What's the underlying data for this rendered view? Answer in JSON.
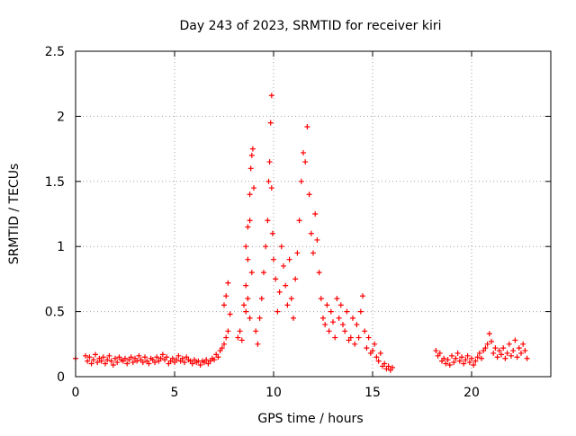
{
  "chart_data": {
    "type": "scatter",
    "title": "Day 243 of 2023, SRMTID for receiver kiri",
    "xlabel": "GPS time / hours",
    "ylabel": "SRMTID / TECUs",
    "xlim": [
      0,
      24
    ],
    "ylim": [
      0,
      2.5
    ],
    "xticks": [
      0,
      5,
      10,
      15,
      20
    ],
    "yticks": [
      0,
      0.5,
      1,
      1.5,
      2,
      2.5
    ],
    "xtick_labels": [
      "0",
      "5",
      "10",
      "15",
      "20"
    ],
    "ytick_labels": [
      "0",
      "0.5",
      "1",
      "1.5",
      "2",
      "2.5"
    ],
    "grid": true,
    "marker": "+",
    "series": [
      {
        "name": "SRMTID",
        "color": "#ff0000",
        "points": [
          [
            0.0,
            0.14
          ],
          [
            0.5,
            0.16
          ],
          [
            0.6,
            0.12
          ],
          [
            0.7,
            0.15
          ],
          [
            0.8,
            0.1
          ],
          [
            0.9,
            0.13
          ],
          [
            1.0,
            0.17
          ],
          [
            1.1,
            0.11
          ],
          [
            1.2,
            0.14
          ],
          [
            1.3,
            0.12
          ],
          [
            1.4,
            0.15
          ],
          [
            1.5,
            0.1
          ],
          [
            1.6,
            0.13
          ],
          [
            1.7,
            0.16
          ],
          [
            1.8,
            0.12
          ],
          [
            1.9,
            0.09
          ],
          [
            2.0,
            0.14
          ],
          [
            2.1,
            0.11
          ],
          [
            2.2,
            0.15
          ],
          [
            2.3,
            0.13
          ],
          [
            2.4,
            0.12
          ],
          [
            2.5,
            0.14
          ],
          [
            2.6,
            0.1
          ],
          [
            2.7,
            0.13
          ],
          [
            2.8,
            0.15
          ],
          [
            2.9,
            0.11
          ],
          [
            3.0,
            0.14
          ],
          [
            3.1,
            0.12
          ],
          [
            3.2,
            0.16
          ],
          [
            3.3,
            0.13
          ],
          [
            3.4,
            0.11
          ],
          [
            3.5,
            0.15
          ],
          [
            3.6,
            0.12
          ],
          [
            3.7,
            0.1
          ],
          [
            3.8,
            0.14
          ],
          [
            3.9,
            0.13
          ],
          [
            4.0,
            0.11
          ],
          [
            4.1,
            0.15
          ],
          [
            4.2,
            0.12
          ],
          [
            4.3,
            0.14
          ],
          [
            4.4,
            0.17
          ],
          [
            4.5,
            0.13
          ],
          [
            4.6,
            0.15
          ],
          [
            4.7,
            0.1
          ],
          [
            4.8,
            0.12
          ],
          [
            4.9,
            0.14
          ],
          [
            5.0,
            0.11
          ],
          [
            5.1,
            0.13
          ],
          [
            5.2,
            0.16
          ],
          [
            5.3,
            0.12
          ],
          [
            5.4,
            0.14
          ],
          [
            5.5,
            0.11
          ],
          [
            5.6,
            0.15
          ],
          [
            5.7,
            0.13
          ],
          [
            5.8,
            0.12
          ],
          [
            5.9,
            0.1
          ],
          [
            6.0,
            0.13
          ],
          [
            6.1,
            0.11
          ],
          [
            6.2,
            0.12
          ],
          [
            6.3,
            0.09
          ],
          [
            6.4,
            0.12
          ],
          [
            6.5,
            0.11
          ],
          [
            6.6,
            0.13
          ],
          [
            6.7,
            0.1
          ],
          [
            6.8,
            0.12
          ],
          [
            6.9,
            0.14
          ],
          [
            7.0,
            0.13
          ],
          [
            7.1,
            0.17
          ],
          [
            7.2,
            0.15
          ],
          [
            7.3,
            0.2
          ],
          [
            7.4,
            0.22
          ],
          [
            7.5,
            0.25
          ],
          [
            7.6,
            0.3
          ],
          [
            7.7,
            0.35
          ],
          [
            7.5,
            0.55
          ],
          [
            7.6,
            0.62
          ],
          [
            7.7,
            0.72
          ],
          [
            7.8,
            0.48
          ],
          [
            8.2,
            0.3
          ],
          [
            8.3,
            0.35
          ],
          [
            8.4,
            0.28
          ],
          [
            8.5,
            0.55
          ],
          [
            8.6,
            0.7
          ],
          [
            8.7,
            0.6
          ],
          [
            8.8,
            0.45
          ],
          [
            8.9,
            0.8
          ],
          [
            8.6,
            1.0
          ],
          [
            8.7,
            1.15
          ],
          [
            8.8,
            1.4
          ],
          [
            8.85,
            1.6
          ],
          [
            8.9,
            1.7
          ],
          [
            8.95,
            1.75
          ],
          [
            9.0,
            1.45
          ],
          [
            8.8,
            1.2
          ],
          [
            8.7,
            0.9
          ],
          [
            8.6,
            0.5
          ],
          [
            9.1,
            0.35
          ],
          [
            9.2,
            0.25
          ],
          [
            9.3,
            0.45
          ],
          [
            9.4,
            0.6
          ],
          [
            9.5,
            0.8
          ],
          [
            9.6,
            1.0
          ],
          [
            9.7,
            1.2
          ],
          [
            9.75,
            1.5
          ],
          [
            9.8,
            1.65
          ],
          [
            9.85,
            1.95
          ],
          [
            9.9,
            2.16
          ],
          [
            9.9,
            1.45
          ],
          [
            9.95,
            1.1
          ],
          [
            10.0,
            0.9
          ],
          [
            10.1,
            0.75
          ],
          [
            10.2,
            0.5
          ],
          [
            10.3,
            0.65
          ],
          [
            10.4,
            1.0
          ],
          [
            10.5,
            0.85
          ],
          [
            10.6,
            0.7
          ],
          [
            10.7,
            0.55
          ],
          [
            10.8,
            0.9
          ],
          [
            10.9,
            0.6
          ],
          [
            11.0,
            0.45
          ],
          [
            11.1,
            0.75
          ],
          [
            11.2,
            0.95
          ],
          [
            11.3,
            1.2
          ],
          [
            11.4,
            1.5
          ],
          [
            11.5,
            1.72
          ],
          [
            11.6,
            1.65
          ],
          [
            11.7,
            1.92
          ],
          [
            11.8,
            1.4
          ],
          [
            11.9,
            1.1
          ],
          [
            12.0,
            0.95
          ],
          [
            12.1,
            1.25
          ],
          [
            12.2,
            1.05
          ],
          [
            12.3,
            0.8
          ],
          [
            12.4,
            0.6
          ],
          [
            12.5,
            0.45
          ],
          [
            12.6,
            0.4
          ],
          [
            12.7,
            0.55
          ],
          [
            12.8,
            0.35
          ],
          [
            12.9,
            0.5
          ],
          [
            13.0,
            0.42
          ],
          [
            13.1,
            0.3
          ],
          [
            13.2,
            0.6
          ],
          [
            13.3,
            0.45
          ],
          [
            13.4,
            0.55
          ],
          [
            13.5,
            0.4
          ],
          [
            13.6,
            0.35
          ],
          [
            13.7,
            0.5
          ],
          [
            13.8,
            0.28
          ],
          [
            13.9,
            0.3
          ],
          [
            14.0,
            0.45
          ],
          [
            14.1,
            0.25
          ],
          [
            14.2,
            0.4
          ],
          [
            14.3,
            0.3
          ],
          [
            14.4,
            0.5
          ],
          [
            14.5,
            0.62
          ],
          [
            14.6,
            0.35
          ],
          [
            14.7,
            0.22
          ],
          [
            14.8,
            0.3
          ],
          [
            14.9,
            0.18
          ],
          [
            15.0,
            0.2
          ],
          [
            15.1,
            0.25
          ],
          [
            15.2,
            0.15
          ],
          [
            15.3,
            0.12
          ],
          [
            15.4,
            0.18
          ],
          [
            15.5,
            0.08
          ],
          [
            15.6,
            0.1
          ],
          [
            15.7,
            0.06
          ],
          [
            15.8,
            0.08
          ],
          [
            15.9,
            0.05
          ],
          [
            16.0,
            0.07
          ],
          [
            18.2,
            0.2
          ],
          [
            18.3,
            0.16
          ],
          [
            18.4,
            0.18
          ],
          [
            18.5,
            0.12
          ],
          [
            18.6,
            0.14
          ],
          [
            18.7,
            0.1
          ],
          [
            18.8,
            0.13
          ],
          [
            18.9,
            0.09
          ],
          [
            19.0,
            0.16
          ],
          [
            19.1,
            0.11
          ],
          [
            19.2,
            0.14
          ],
          [
            19.3,
            0.18
          ],
          [
            19.4,
            0.12
          ],
          [
            19.5,
            0.15
          ],
          [
            19.6,
            0.1
          ],
          [
            19.7,
            0.13
          ],
          [
            19.8,
            0.16
          ],
          [
            19.9,
            0.11
          ],
          [
            20.0,
            0.14
          ],
          [
            20.1,
            0.09
          ],
          [
            20.2,
            0.12
          ],
          [
            20.3,
            0.15
          ],
          [
            20.4,
            0.18
          ],
          [
            20.5,
            0.14
          ],
          [
            20.6,
            0.2
          ],
          [
            20.7,
            0.22
          ],
          [
            20.8,
            0.25
          ],
          [
            20.9,
            0.33
          ],
          [
            21.0,
            0.27
          ],
          [
            21.1,
            0.18
          ],
          [
            21.2,
            0.22
          ],
          [
            21.3,
            0.15
          ],
          [
            21.4,
            0.2
          ],
          [
            21.5,
            0.17
          ],
          [
            21.6,
            0.22
          ],
          [
            21.7,
            0.14
          ],
          [
            21.8,
            0.18
          ],
          [
            21.9,
            0.25
          ],
          [
            22.0,
            0.16
          ],
          [
            22.1,
            0.2
          ],
          [
            22.2,
            0.28
          ],
          [
            22.3,
            0.15
          ],
          [
            22.4,
            0.22
          ],
          [
            22.5,
            0.18
          ],
          [
            22.6,
            0.25
          ],
          [
            22.7,
            0.2
          ],
          [
            22.8,
            0.14
          ]
        ]
      }
    ]
  }
}
